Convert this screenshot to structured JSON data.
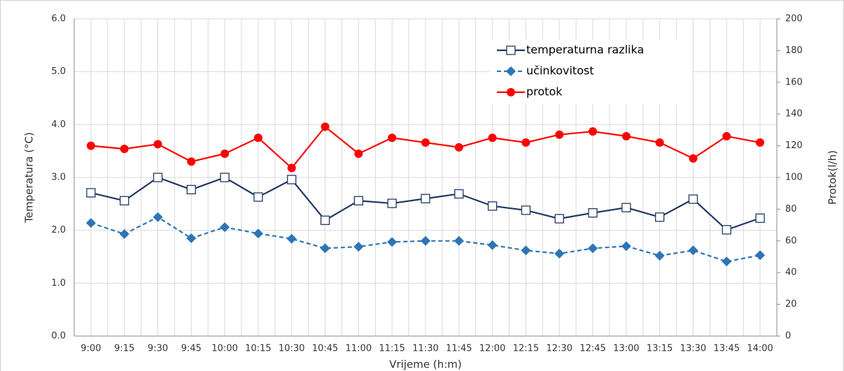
{
  "chart_data": {
    "type": "line",
    "x_label": "Vrijeme (h:m)",
    "y_label": "Temperatura (°C)",
    "y2_label": "Protok(l/h)",
    "categories": [
      "9:00",
      "9:15",
      "9:30",
      "9:45",
      "10:00",
      "10:15",
      "10:30",
      "10:45",
      "11:00",
      "11:15",
      "11:30",
      "11:45",
      "12:00",
      "12:15",
      "12:30",
      "12:45",
      "13:00",
      "13:15",
      "13:30",
      "13:45",
      "14:00"
    ],
    "series": [
      {
        "name": "temperaturna razlika",
        "color": "#1f3864",
        "marker": "square",
        "dashed": false,
        "values": [
          2.71,
          2.56,
          3.0,
          2.77,
          3.0,
          2.63,
          2.96,
          2.19,
          2.56,
          2.51,
          2.6,
          2.69,
          2.46,
          2.38,
          2.22,
          2.33,
          2.43,
          2.25,
          2.59,
          2.01,
          2.23
        ]
      },
      {
        "name": "učinkovitost",
        "color": "#2e75b6",
        "marker": "diamond",
        "dashed": true,
        "values": [
          2.14,
          1.93,
          2.25,
          1.85,
          2.06,
          1.94,
          1.84,
          1.66,
          1.69,
          1.78,
          1.8,
          1.8,
          1.72,
          1.62,
          1.56,
          1.66,
          1.7,
          1.52,
          1.62,
          1.41,
          1.53
        ]
      },
      {
        "name": "protok",
        "color": "#ff0000",
        "marker": "circle",
        "dashed": false,
        "axis": "y2",
        "values": [
          120,
          118,
          121,
          110,
          115,
          125,
          106,
          132,
          115,
          125,
          122,
          119,
          125,
          122,
          127,
          129,
          126,
          122,
          112,
          126,
          122
        ]
      }
    ],
    "ylim": [
      0,
      6
    ],
    "yticks": [
      {
        "value": 0,
        "label": "0.0"
      },
      {
        "value": 1,
        "label": "1.0"
      },
      {
        "value": 2,
        "label": "2.0"
      },
      {
        "value": 3,
        "label": "3.0"
      },
      {
        "value": 4,
        "label": "4.0"
      },
      {
        "value": 5,
        "label": "5.0"
      },
      {
        "value": 6,
        "label": "6.0"
      }
    ],
    "y2lim": [
      0,
      200
    ],
    "y2ticks": [
      0,
      20,
      40,
      60,
      80,
      100,
      120,
      140,
      160,
      180,
      200
    ],
    "grid": true,
    "legend": "top-right"
  }
}
